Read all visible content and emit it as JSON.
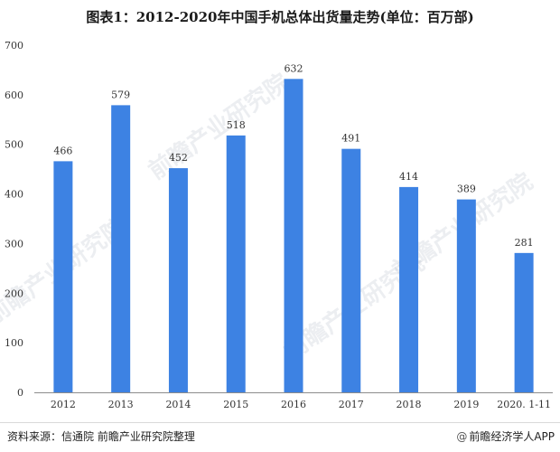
{
  "title": "图表1：2012-2020年中国手机总体出货量走势(单位：百万部)",
  "source": "资料来源：信通院 前瞻产业研究院整理",
  "brand": {
    "icon": "at-icon",
    "symbol": "@",
    "name": "前瞻经济学人APP"
  },
  "watermark": {
    "text": "前瞻产业研究院"
  },
  "colors": {
    "bar": "#3d82e3",
    "axis": "#8c8c8c",
    "text": "#333333"
  },
  "chart_data": {
    "type": "bar",
    "title": "图表1：2012-2020年中国手机总体出货量走势(单位：百万部)",
    "categories": [
      "2012",
      "2013",
      "2014",
      "2015",
      "2016",
      "2017",
      "2018",
      "2019",
      "2020. 1-11"
    ],
    "values": [
      466,
      579,
      452,
      518,
      632,
      491,
      414,
      389,
      281
    ],
    "data_labels": [
      "466",
      "579",
      "452",
      "518",
      "632",
      "491",
      "414",
      "389",
      "281"
    ],
    "yticks": [
      0,
      100,
      200,
      300,
      400,
      500,
      600,
      700
    ],
    "ylim": [
      0,
      700
    ],
    "xlabel": "",
    "ylabel": "",
    "grid": false,
    "legend": "none"
  }
}
